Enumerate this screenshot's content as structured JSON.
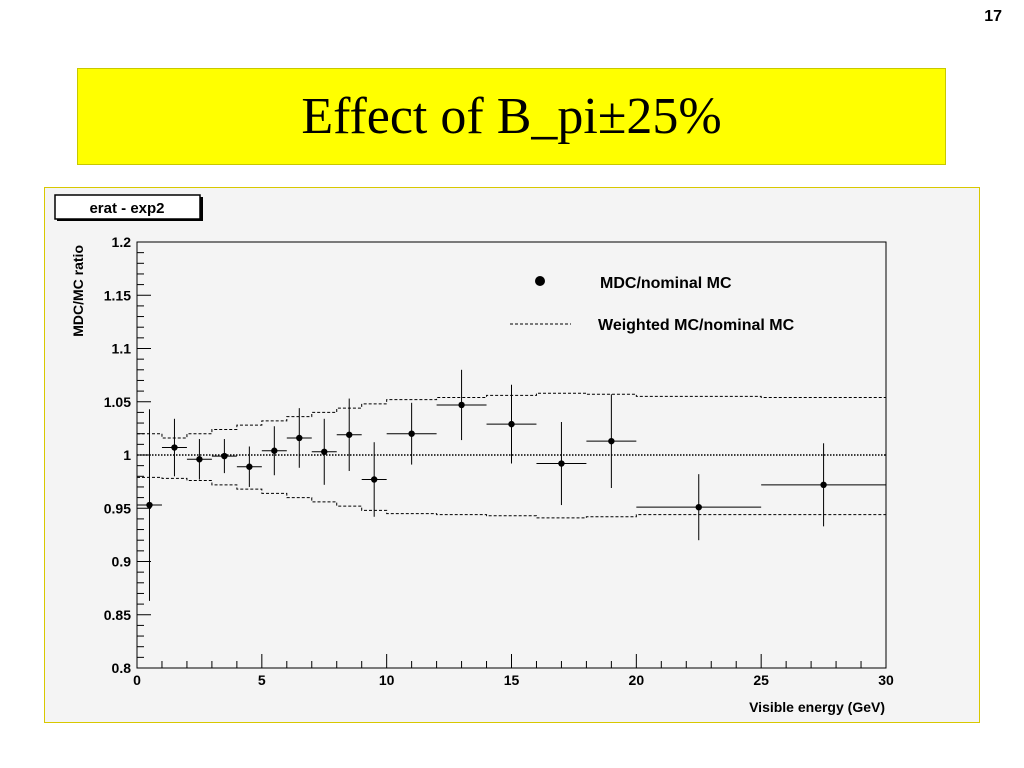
{
  "slide": {
    "number": "17",
    "title": "Effect of B_pi±25%"
  },
  "chart_data": {
    "type": "scatter",
    "title": "erat - exp2",
    "xlabel": "Visible energy (GeV)",
    "ylabel": "MDC/MC ratio",
    "xlim": [
      0,
      30
    ],
    "ylim": [
      0.8,
      1.2
    ],
    "x_ticks": [
      "0",
      "5",
      "10",
      "15",
      "20",
      "25",
      "30"
    ],
    "y_ticks": [
      "0.8",
      "0.85",
      "0.9",
      "0.95",
      "1",
      "1.05",
      "1.1",
      "1.15",
      "1.2"
    ],
    "reference_line": 1.0,
    "legend": {
      "position": "top-right",
      "entries": [
        "MDC/nominal MC",
        "Weighted MC/nominal MC"
      ]
    },
    "points": [
      {
        "x": 0.5,
        "xerr": 0.5,
        "y": 0.953,
        "yerr": 0.09
      },
      {
        "x": 1.5,
        "xerr": 0.5,
        "y": 1.007,
        "yerr": 0.027
      },
      {
        "x": 2.5,
        "xerr": 0.5,
        "y": 0.996,
        "yerr": 0.019
      },
      {
        "x": 3.5,
        "xerr": 0.5,
        "y": 0.999,
        "yerr": 0.016
      },
      {
        "x": 4.5,
        "xerr": 0.5,
        "y": 0.989,
        "yerr": 0.019
      },
      {
        "x": 5.5,
        "xerr": 0.5,
        "y": 1.004,
        "yerr": 0.023
      },
      {
        "x": 6.5,
        "xerr": 0.5,
        "y": 1.016,
        "yerr": 0.028
      },
      {
        "x": 7.5,
        "xerr": 0.5,
        "y": 1.003,
        "yerr": 0.031
      },
      {
        "x": 8.5,
        "xerr": 0.5,
        "y": 1.019,
        "yerr": 0.034
      },
      {
        "x": 9.5,
        "xerr": 0.5,
        "y": 0.977,
        "yerr": 0.035
      },
      {
        "x": 11,
        "xerr": 1,
        "y": 1.02,
        "yerr": 0.029
      },
      {
        "x": 13,
        "xerr": 1,
        "y": 1.047,
        "yerr": 0.033
      },
      {
        "x": 15,
        "xerr": 1,
        "y": 1.029,
        "yerr": 0.037
      },
      {
        "x": 17,
        "xerr": 1,
        "y": 0.992,
        "yerr": 0.039
      },
      {
        "x": 19,
        "xerr": 1,
        "y": 1.013,
        "yerr": 0.044
      },
      {
        "x": 22.5,
        "xerr": 2.5,
        "y": 0.951,
        "yerr": 0.031
      },
      {
        "x": 27.5,
        "xerr": 2.5,
        "y": 0.972,
        "yerr": 0.039
      }
    ],
    "band_upper": {
      "x": [
        0,
        1,
        2,
        3,
        4,
        5,
        6,
        7,
        8,
        9,
        10,
        12,
        14,
        16,
        18,
        20,
        25,
        30
      ],
      "y": [
        1.02,
        1.016,
        1.02,
        1.024,
        1.028,
        1.032,
        1.036,
        1.04,
        1.044,
        1.048,
        1.052,
        1.054,
        1.056,
        1.058,
        1.057,
        1.055,
        1.054,
        1.054
      ]
    },
    "band_lower": {
      "x": [
        0,
        1,
        2,
        3,
        4,
        5,
        6,
        7,
        8,
        9,
        10,
        12,
        14,
        16,
        18,
        20,
        25,
        30
      ],
      "y": [
        0.979,
        0.978,
        0.976,
        0.972,
        0.968,
        0.964,
        0.96,
        0.956,
        0.952,
        0.948,
        0.945,
        0.944,
        0.943,
        0.941,
        0.942,
        0.944,
        0.944,
        0.944
      ]
    }
  }
}
